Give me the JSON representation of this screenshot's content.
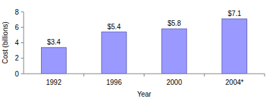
{
  "chart_data": {
    "type": "bar",
    "x_label": "Year",
    "y_label": "Cost (billions)",
    "categories": [
      "1992",
      "1996",
      "2000",
      "2004*"
    ],
    "values": [
      3.4,
      5.4,
      5.8,
      7.1
    ],
    "value_labels": [
      "$3.4",
      "$5.4",
      "$5.8",
      "$7.1"
    ],
    "data_labels": true,
    "color": "#9999ff",
    "ylim": [
      0,
      8
    ],
    "yticks": [
      0,
      2,
      4,
      6,
      8
    ],
    "grid": false
  }
}
